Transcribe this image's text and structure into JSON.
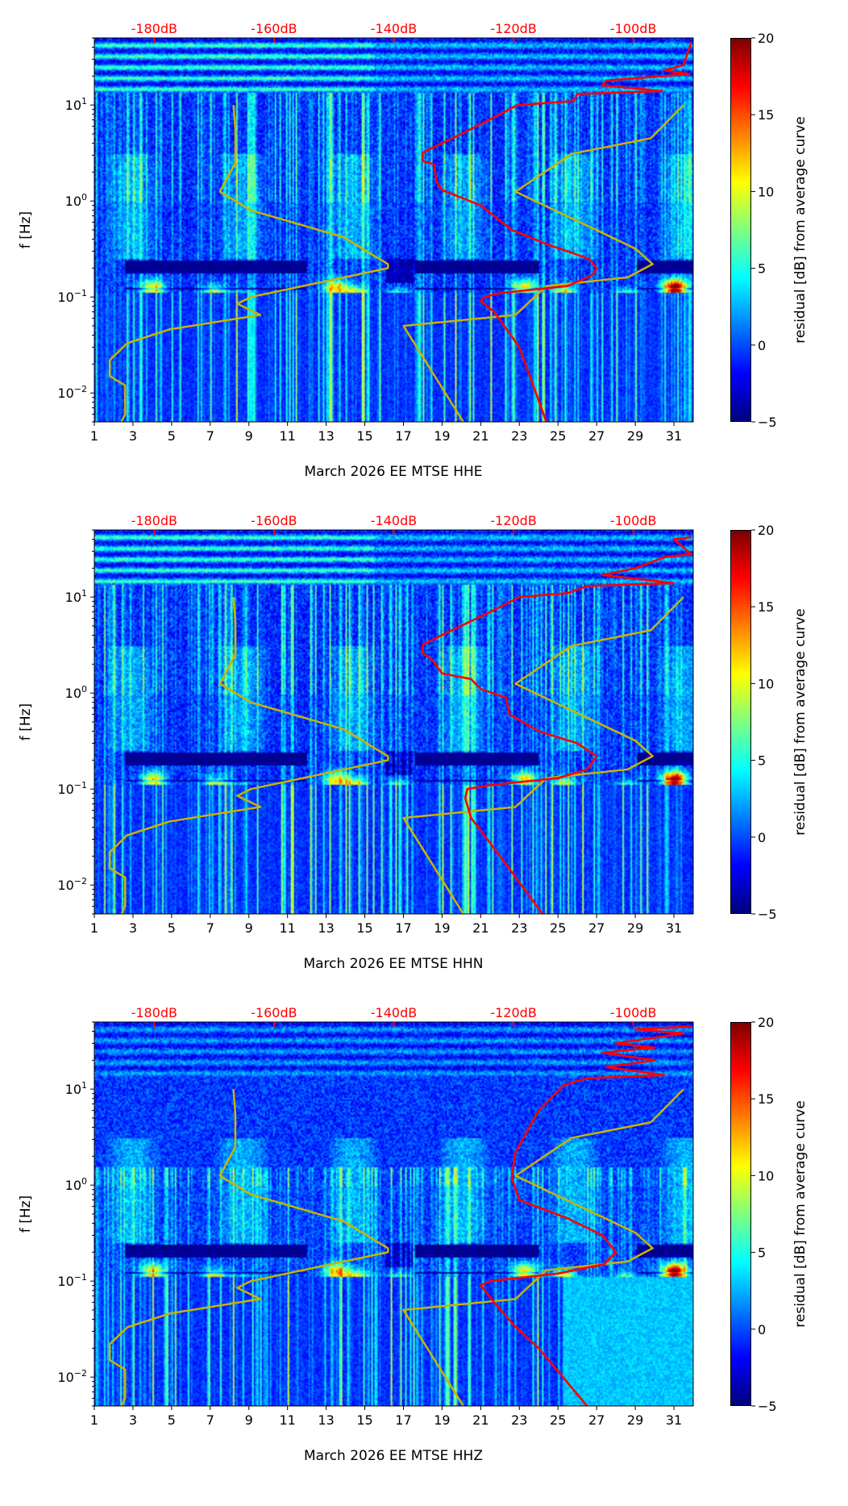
{
  "chart_data": {
    "type": "heatmap",
    "xlabel_prefix": "March 2026 EE MTSE",
    "ylabel": "f [Hz]",
    "xlim": [
      1,
      32
    ],
    "ylim": [
      0.005,
      50
    ],
    "yscale": "log",
    "x_ticks": [
      "1",
      "3",
      "5",
      "7",
      "9",
      "11",
      "13",
      "15",
      "17",
      "19",
      "21",
      "23",
      "25",
      "27",
      "29",
      "31"
    ],
    "y_ticks": [
      {
        "value": 0.01,
        "base": "10",
        "exp": "−2"
      },
      {
        "value": 0.1,
        "base": "10",
        "exp": "−1"
      },
      {
        "value": 1,
        "base": "10",
        "exp": "0"
      },
      {
        "value": 10,
        "base": "10",
        "exp": "1"
      }
    ],
    "top_axis": {
      "color": "#ff0000",
      "ticks": [
        {
          "label": "-180dB",
          "db": -180
        },
        {
          "label": "-160dB",
          "db": -160
        },
        {
          "label": "-140dB",
          "db": -140
        },
        {
          "label": "-120dB",
          "db": -120
        },
        {
          "label": "-100dB",
          "db": -100
        }
      ],
      "day_at_minus180": 4.1,
      "days_per_20db": 6.2
    },
    "colorbar": {
      "label": "residual [dB] from average curve",
      "range": [
        -5,
        20
      ],
      "ticks": [
        "−5",
        "0",
        "5",
        "10",
        "15",
        "20"
      ],
      "colormap": "jet"
    },
    "panels": [
      {
        "channel": "HHE",
        "xlabel": "March 2026 EE MTSE  HHE",
        "red_curve_day_freq": [
          [
            31.9,
            45
          ],
          [
            31.5,
            26
          ],
          [
            30.5,
            23
          ],
          [
            31.8,
            21
          ],
          [
            27.5,
            18
          ],
          [
            27.3,
            16
          ],
          [
            30.4,
            14
          ],
          [
            26,
            13
          ],
          [
            25.8,
            11
          ],
          [
            22.9,
            10
          ],
          [
            22,
            8
          ],
          [
            20,
            5
          ],
          [
            18,
            3.2
          ],
          [
            18,
            2.6
          ],
          [
            18.6,
            2.4
          ],
          [
            18.7,
            1.6
          ],
          [
            19,
            1.3
          ],
          [
            21,
            0.9
          ],
          [
            22.6,
            0.5
          ],
          [
            24.5,
            0.35
          ],
          [
            26.6,
            0.25
          ],
          [
            27,
            0.2
          ],
          [
            26.8,
            0.17
          ],
          [
            25.5,
            0.13
          ],
          [
            22,
            0.11
          ],
          [
            21.2,
            0.1
          ],
          [
            21,
            0.09
          ],
          [
            21.7,
            0.07
          ],
          [
            23,
            0.03
          ],
          [
            24.4,
            0.005
          ]
        ]
      },
      {
        "channel": "HHN",
        "xlabel": "March 2026 EE MTSE  HHN",
        "red_curve_day_freq": [
          [
            31.9,
            42
          ],
          [
            31,
            40
          ],
          [
            31.9,
            28
          ],
          [
            30.5,
            26
          ],
          [
            29,
            20
          ],
          [
            27.3,
            17
          ],
          [
            31,
            14
          ],
          [
            26.5,
            13
          ],
          [
            25.5,
            11
          ],
          [
            23,
            10
          ],
          [
            21.5,
            7
          ],
          [
            19.5,
            4.5
          ],
          [
            18,
            3.2
          ],
          [
            18,
            2.6
          ],
          [
            18.5,
            2.2
          ],
          [
            19,
            1.6
          ],
          [
            20.5,
            1.4
          ],
          [
            21,
            1.1
          ],
          [
            22.3,
            0.9
          ],
          [
            22.5,
            0.6
          ],
          [
            24,
            0.4
          ],
          [
            26,
            0.3
          ],
          [
            27,
            0.22
          ],
          [
            26.5,
            0.16
          ],
          [
            25,
            0.13
          ],
          [
            21.5,
            0.11
          ],
          [
            20.3,
            0.1
          ],
          [
            20.2,
            0.08
          ],
          [
            20.5,
            0.05
          ],
          [
            22,
            0.02
          ],
          [
            24.2,
            0.005
          ]
        ]
      },
      {
        "channel": "HHZ",
        "xlabel": "March 2026 EE MTSE  HHZ",
        "red_curve_day_freq": [
          [
            31.9,
            45
          ],
          [
            29,
            42
          ],
          [
            31.5,
            38
          ],
          [
            28,
            30
          ],
          [
            30,
            27
          ],
          [
            27.3,
            24
          ],
          [
            30,
            20
          ],
          [
            27.5,
            17
          ],
          [
            30.5,
            14
          ],
          [
            26.5,
            13
          ],
          [
            25.3,
            11
          ],
          [
            24,
            6
          ],
          [
            22.8,
            2.2
          ],
          [
            22.6,
            1.2
          ],
          [
            23,
            0.7
          ],
          [
            25.5,
            0.45
          ],
          [
            27.3,
            0.3
          ],
          [
            28,
            0.2
          ],
          [
            27.4,
            0.15
          ],
          [
            25,
            0.12
          ],
          [
            21.5,
            0.1
          ],
          [
            21,
            0.09
          ],
          [
            21.7,
            0.06
          ],
          [
            22.7,
            0.035
          ],
          [
            24,
            0.02
          ],
          [
            26.5,
            0.005
          ]
        ]
      }
    ],
    "yellow_low_model_day_freq": [
      [
        8.2,
        10
      ],
      [
        8.3,
        5.5
      ],
      [
        8.3,
        2.5
      ],
      [
        7.5,
        1.25
      ],
      [
        9.1,
        0.8
      ],
      [
        13.9,
        0.42
      ],
      [
        16.2,
        0.22
      ],
      [
        16.2,
        0.2
      ],
      [
        9.1,
        0.1
      ],
      [
        8.4,
        0.085
      ],
      [
        9.6,
        0.065
      ],
      [
        4.9,
        0.046
      ],
      [
        2.7,
        0.033
      ],
      [
        1.8,
        0.022
      ],
      [
        1.8,
        0.015
      ],
      [
        2.6,
        0.012
      ],
      [
        2.6,
        0.006
      ],
      [
        2.4,
        0.005
      ]
    ],
    "yellow_high_model_day_freq": [
      [
        31.5,
        10
      ],
      [
        29.8,
        4.5
      ],
      [
        25.7,
        3.1
      ],
      [
        22.8,
        1.25
      ],
      [
        29,
        0.32
      ],
      [
        29.9,
        0.22
      ],
      [
        28.6,
        0.16
      ],
      [
        24.4,
        0.13
      ],
      [
        22.8,
        0.065
      ],
      [
        17,
        0.05
      ],
      [
        20.1,
        0.005
      ]
    ],
    "colors": {
      "red_curve": "#ff0000",
      "model_curves": "#c8b400"
    }
  }
}
